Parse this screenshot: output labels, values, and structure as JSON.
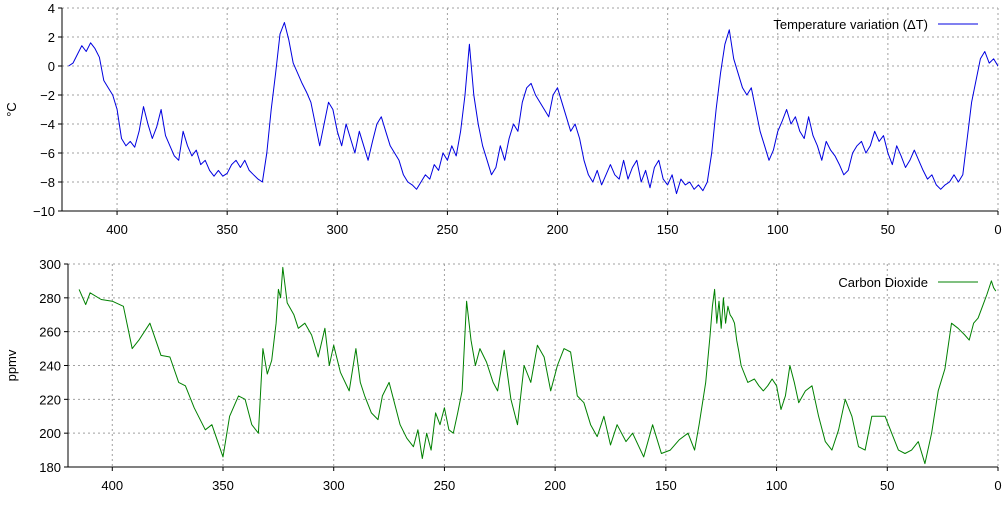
{
  "chart_data": [
    {
      "type": "line",
      "ylabel": "°C",
      "xlabel": "",
      "xlim": [
        425,
        0
      ],
      "ylim": [
        -10,
        4
      ],
      "x_ticks": [
        400,
        350,
        300,
        250,
        200,
        150,
        100,
        50,
        0
      ],
      "y_ticks": [
        4,
        2,
        0,
        -2,
        -4,
        -6,
        -8,
        -10
      ],
      "x_tick_labels": [
        "400",
        "350",
        "300",
        "250",
        "200",
        "150",
        "100",
        "50",
        "0"
      ],
      "y_tick_labels": [
        "4",
        "2",
        "0",
        "−2",
        "−4",
        "−6",
        "−8",
        "−10"
      ],
      "grid": true,
      "legend_position": "top-right",
      "series": [
        {
          "name": "Temperature variation (ΔT)",
          "color": "#0000e0",
          "x": [
            422,
            420,
            418,
            416,
            414,
            412,
            410,
            408,
            406,
            404,
            402,
            400,
            398,
            396,
            394,
            392,
            390,
            388,
            386,
            384,
            382,
            380,
            378,
            376,
            374,
            372,
            370,
            368,
            366,
            364,
            362,
            360,
            358,
            356,
            354,
            352,
            350,
            348,
            346,
            344,
            342,
            340,
            338,
            336,
            334,
            332,
            330,
            328,
            326,
            324,
            322,
            320,
            318,
            316,
            314,
            312,
            310,
            308,
            306,
            304,
            302,
            300,
            298,
            296,
            294,
            292,
            290,
            288,
            286,
            284,
            282,
            280,
            278,
            276,
            274,
            272,
            270,
            268,
            266,
            264,
            262,
            260,
            258,
            256,
            254,
            252,
            250,
            248,
            246,
            244,
            242,
            240,
            238,
            236,
            234,
            232,
            230,
            228,
            226,
            224,
            222,
            220,
            218,
            216,
            214,
            212,
            210,
            208,
            206,
            204,
            202,
            200,
            198,
            196,
            194,
            192,
            190,
            188,
            186,
            184,
            182,
            180,
            178,
            176,
            174,
            172,
            170,
            168,
            166,
            164,
            162,
            160,
            158,
            156,
            154,
            152,
            150,
            148,
            146,
            144,
            142,
            140,
            138,
            136,
            134,
            132,
            130,
            128,
            126,
            124,
            122,
            120,
            118,
            116,
            114,
            112,
            110,
            108,
            106,
            104,
            102,
            100,
            98,
            96,
            94,
            92,
            90,
            88,
            86,
            84,
            82,
            80,
            78,
            76,
            74,
            72,
            70,
            68,
            66,
            64,
            62,
            60,
            58,
            56,
            54,
            52,
            50,
            48,
            46,
            44,
            42,
            40,
            38,
            36,
            34,
            32,
            30,
            28,
            26,
            24,
            22,
            20,
            18,
            16,
            14,
            12,
            10,
            8,
            6,
            4,
            2,
            0
          ],
          "values": [
            0.0,
            0.2,
            0.8,
            1.4,
            1.0,
            1.6,
            1.2,
            0.6,
            -1.0,
            -1.5,
            -2.0,
            -3.0,
            -5.0,
            -5.5,
            -5.2,
            -5.6,
            -4.5,
            -2.8,
            -4.0,
            -5.0,
            -4.2,
            -3.0,
            -4.8,
            -5.5,
            -6.2,
            -6.5,
            -4.5,
            -5.5,
            -6.2,
            -5.8,
            -6.8,
            -6.5,
            -7.2,
            -7.6,
            -7.2,
            -7.6,
            -7.4,
            -6.8,
            -6.5,
            -7.0,
            -6.5,
            -7.2,
            -7.5,
            -7.8,
            -8.0,
            -6.0,
            -3.0,
            -0.5,
            2.2,
            3.0,
            1.8,
            0.2,
            -0.5,
            -1.2,
            -1.8,
            -2.5,
            -4.0,
            -5.5,
            -4.0,
            -2.5,
            -3.0,
            -4.5,
            -5.5,
            -4.0,
            -5.0,
            -6.0,
            -4.5,
            -5.5,
            -6.5,
            -5.2,
            -4.0,
            -3.5,
            -4.5,
            -5.5,
            -6.0,
            -6.5,
            -7.5,
            -8.0,
            -8.2,
            -8.5,
            -8.0,
            -7.5,
            -7.8,
            -6.8,
            -7.2,
            -6.0,
            -6.5,
            -5.5,
            -6.2,
            -4.5,
            -2.0,
            1.5,
            -2.0,
            -4.0,
            -5.5,
            -6.5,
            -7.5,
            -7.0,
            -5.5,
            -6.5,
            -5.0,
            -4.0,
            -4.5,
            -2.5,
            -1.5,
            -1.2,
            -2.0,
            -2.5,
            -3.0,
            -3.5,
            -2.0,
            -1.5,
            -2.5,
            -3.5,
            -4.5,
            -4.0,
            -5.0,
            -6.5,
            -7.5,
            -8.0,
            -7.2,
            -8.2,
            -7.5,
            -6.8,
            -7.5,
            -7.8,
            -6.5,
            -7.8,
            -7.0,
            -6.5,
            -8.0,
            -7.2,
            -8.4,
            -7.0,
            -6.5,
            -7.8,
            -8.2,
            -7.5,
            -8.8,
            -7.8,
            -8.2,
            -8.0,
            -8.5,
            -8.2,
            -8.6,
            -8.0,
            -6.0,
            -3.0,
            -0.5,
            1.5,
            2.5,
            0.5,
            -0.5,
            -1.5,
            -2.0,
            -1.5,
            -3.0,
            -4.5,
            -5.5,
            -6.5,
            -5.8,
            -4.5,
            -3.8,
            -3.0,
            -4.0,
            -3.5,
            -4.5,
            -5.0,
            -3.5,
            -4.8,
            -5.5,
            -6.5,
            -5.2,
            -5.8,
            -6.2,
            -6.8,
            -7.5,
            -7.2,
            -6.0,
            -5.5,
            -5.2,
            -6.0,
            -5.5,
            -4.5,
            -5.2,
            -4.8,
            -6.0,
            -6.8,
            -5.5,
            -6.2,
            -7.0,
            -6.5,
            -5.8,
            -6.5,
            -7.2,
            -7.8,
            -7.5,
            -8.2,
            -8.5,
            -8.2,
            -8.0,
            -7.5,
            -8.0,
            -7.5,
            -5.0,
            -2.5,
            -1.0,
            0.5,
            1.0,
            0.2,
            0.5,
            0.0
          ]
        }
      ]
    },
    {
      "type": "line",
      "ylabel": "ppmv",
      "xlabel": "",
      "xlim": [
        420,
        0
      ],
      "ylim": [
        180,
        300
      ],
      "x_ticks": [
        400,
        350,
        300,
        250,
        200,
        150,
        100,
        50,
        0
      ],
      "y_ticks": [
        300,
        280,
        260,
        240,
        220,
        200,
        180
      ],
      "x_tick_labels": [
        "400",
        "350",
        "300",
        "250",
        "200",
        "150",
        "100",
        "50",
        "0"
      ],
      "y_tick_labels": [
        "300",
        "280",
        "260",
        "240",
        "220",
        "200",
        "180"
      ],
      "grid": true,
      "legend_position": "top-right",
      "series": [
        {
          "name": "Carbon Dioxide",
          "color": "#008000",
          "x": [
            415,
            412,
            410,
            405,
            400,
            395,
            391,
            388,
            383,
            378,
            374,
            370,
            367,
            363,
            358,
            355,
            350,
            347,
            343,
            340,
            337,
            334,
            332,
            330,
            328,
            326,
            325,
            324,
            323,
            321,
            318,
            316,
            313,
            310,
            307,
            304,
            302,
            300,
            297,
            293,
            290,
            288,
            286,
            283,
            280,
            278,
            275,
            272,
            270,
            267,
            264,
            262,
            260,
            258,
            256,
            254,
            252,
            250,
            248,
            246,
            244,
            242,
            240,
            238,
            236,
            234,
            231,
            228,
            226,
            223,
            220,
            217,
            214,
            211,
            208,
            205,
            202,
            199,
            196,
            193,
            190,
            187,
            184,
            181,
            178,
            175,
            172,
            168,
            165,
            160,
            156,
            152,
            148,
            144,
            140,
            137,
            135,
            132,
            130,
            129,
            128,
            127,
            126,
            125,
            124,
            123,
            122,
            121,
            120,
            119,
            118,
            117,
            116,
            113,
            110,
            108,
            106,
            104,
            102,
            100,
            98,
            96,
            94,
            92,
            90,
            87,
            84,
            81,
            78,
            75,
            72,
            69,
            66,
            63,
            60,
            57,
            54,
            51,
            48,
            45,
            42,
            39,
            36,
            33,
            30,
            27,
            24,
            21,
            18,
            15,
            13,
            11,
            9,
            7,
            5,
            3,
            2,
            1
          ],
          "values": [
            285,
            276,
            283,
            279,
            278,
            275,
            250,
            255,
            265,
            246,
            245,
            230,
            228,
            215,
            202,
            205,
            186,
            210,
            222,
            220,
            205,
            200,
            250,
            235,
            243,
            265,
            285,
            280,
            298,
            277,
            270,
            262,
            265,
            258,
            245,
            262,
            240,
            252,
            236,
            225,
            250,
            230,
            222,
            212,
            208,
            222,
            230,
            215,
            205,
            197,
            192,
            202,
            185,
            200,
            190,
            212,
            205,
            215,
            202,
            200,
            212,
            225,
            278,
            255,
            240,
            250,
            242,
            230,
            225,
            249,
            220,
            205,
            240,
            230,
            252,
            245,
            225,
            240,
            250,
            248,
            222,
            218,
            205,
            198,
            210,
            193,
            205,
            195,
            200,
            186,
            205,
            188,
            190,
            196,
            200,
            190,
            205,
            230,
            258,
            275,
            285,
            265,
            278,
            262,
            280,
            265,
            275,
            270,
            268,
            265,
            255,
            248,
            240,
            230,
            232,
            228,
            225,
            228,
            232,
            228,
            214,
            222,
            240,
            230,
            218,
            225,
            228,
            210,
            195,
            190,
            202,
            220,
            210,
            192,
            190,
            210,
            210,
            210,
            200,
            190,
            188,
            190,
            195,
            182,
            200,
            225,
            238,
            265,
            262,
            258,
            255,
            265,
            268,
            275,
            282,
            290,
            286,
            284
          ]
        }
      ]
    }
  ]
}
